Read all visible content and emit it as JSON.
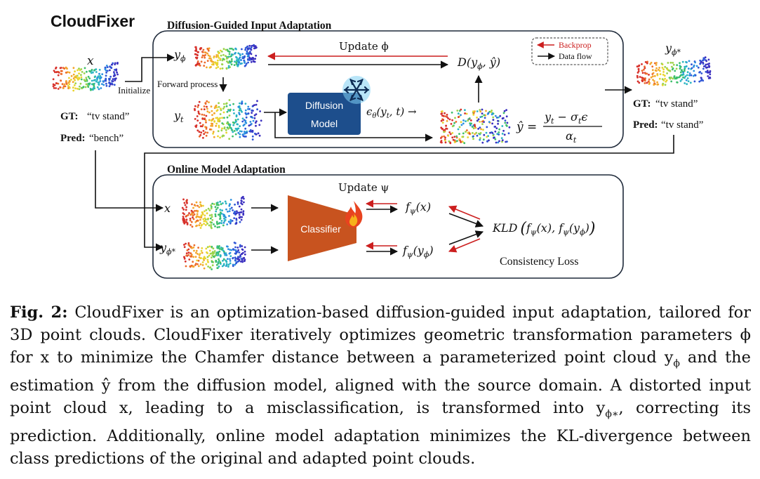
{
  "figure": {
    "title": "CloudFixer",
    "sec1_title": "Diffusion-Guided Input Adaptation",
    "sec2_title": "Online Model Adaptation",
    "x_label": "x",
    "initialize": "Initialize",
    "gt_label": "GT:",
    "gt_value": "“tv stand”",
    "pred_label": "Pred:",
    "pred_value": "“bench”",
    "y_phi": "y",
    "y_phi_sub": "ϕ",
    "forward_process": "Forward process",
    "y_t": "y",
    "y_t_sub": "t",
    "update_phi": "Update ϕ",
    "d_label": "D(y",
    "d_label_rest": ", ŷ)",
    "diffusion_model_1": "Diffusion",
    "diffusion_model_2": "Model",
    "epsilon": "ϵ",
    "epsilon_args": "(y",
    "epsilon_args_2": ", t) →",
    "yhat_eq": "ŷ =",
    "yhat_num": "y",
    "yhat_num_2": " − σ",
    "yhat_num_3": "ϵ",
    "yhat_den": "α",
    "legend_backprop": "Backprop",
    "legend_dataflow": "Data flow",
    "y_phi_star": "y",
    "y_phi_star_sub": "ϕ*",
    "gt_value_2": "“tv stand”",
    "pred_value_2": "“tv stand”",
    "update_psi": "Update ψ",
    "classifier": "Classifier",
    "f_psi_x": "f",
    "f_psi_x_args": "(x)",
    "f_psi_y": "f",
    "f_psi_y_args": "(y",
    "kld": "KLD",
    "kld_args": "(f",
    "consistency_loss": "Consistency Loss",
    "colors": {
      "diffusion_box": "#1d4e8c",
      "classifier": "#c8531f",
      "backprop": "#cc1f1f",
      "flow": "#111111"
    },
    "icons": [
      "snowflake-icon",
      "fire-icon"
    ]
  },
  "caption": {
    "label": "Fig. 2:",
    "text": " CloudFixer is an optimization-based diffusion-guided input adaptation, tailored for 3D point clouds. CloudFixer iteratively optimizes geometric transformation parameters ϕ for x to minimize the Chamfer distance between a parameterized point cloud y",
    "text_sub": "ϕ",
    "text2": " and the estimation ŷ from the diffusion model, aligned with the source domain. A distorted input point cloud x, leading to a misclassification, is transformed into y",
    "text2_sub": "ϕ∗",
    "text3": ", correcting its prediction. Additionally, online model adaptation minimizes the KL-divergence between class predictions of the original and adapted point clouds."
  }
}
